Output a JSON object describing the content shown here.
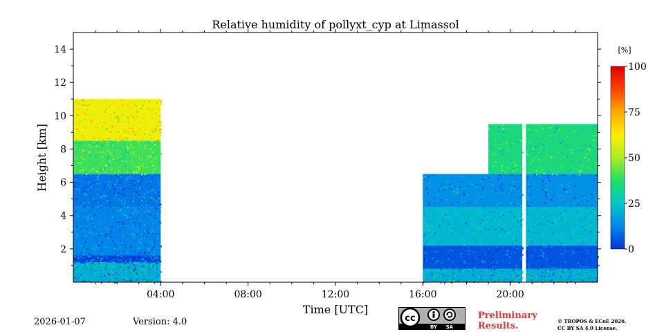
{
  "chart_data": {
    "type": "heatmap",
    "title": "Relative humidity of pollyxt_cyp at Limassol",
    "xlabel": "Time [UTC]",
    "ylabel": "Height [km]",
    "xlim": [
      0,
      24
    ],
    "ylim": [
      0,
      15
    ],
    "x_ticks": [
      {
        "value": 4,
        "label": "04:00"
      },
      {
        "value": 8,
        "label": "08:00"
      },
      {
        "value": 12,
        "label": "12:00"
      },
      {
        "value": 16,
        "label": "16:00"
      },
      {
        "value": 20,
        "label": "20:00"
      }
    ],
    "y_ticks": [
      {
        "value": 2,
        "label": "2"
      },
      {
        "value": 4,
        "label": "4"
      },
      {
        "value": 6,
        "label": "6"
      },
      {
        "value": 8,
        "label": "8"
      },
      {
        "value": 10,
        "label": "10"
      },
      {
        "value": 12,
        "label": "12"
      },
      {
        "value": 14,
        "label": "14"
      }
    ],
    "colorbar": {
      "label": "[%]",
      "range": [
        0,
        100
      ],
      "ticks": [
        {
          "value": 0,
          "label": "0"
        },
        {
          "value": 25,
          "label": "25"
        },
        {
          "value": 50,
          "label": "50"
        },
        {
          "value": 75,
          "label": "75"
        },
        {
          "value": 100,
          "label": "100"
        }
      ],
      "colors": [
        "#0033dd",
        "#0088e8",
        "#00c8c8",
        "#22dd66",
        "#aaee22",
        "#ffee00",
        "#ffaa00",
        "#ff4400",
        "#dd0000"
      ]
    },
    "measurement_periods": [
      {
        "start": 0.0,
        "end": 4.0
      },
      {
        "start": 16.0,
        "end": 20.55
      },
      {
        "start": 20.72,
        "end": 24.0
      }
    ],
    "profile_regions": [
      {
        "period": "night",
        "time_range": [
          0.0,
          4.0
        ],
        "height_range_km": [
          0.0,
          1.2
        ],
        "rh_percent": 20
      },
      {
        "period": "night",
        "time_range": [
          0.0,
          4.0
        ],
        "height_range_km": [
          1.2,
          1.6
        ],
        "rh_percent": 3
      },
      {
        "period": "night",
        "time_range": [
          0.0,
          4.0
        ],
        "height_range_km": [
          1.6,
          4.5
        ],
        "rh_percent": 12
      },
      {
        "period": "night",
        "time_range": [
          0.0,
          4.0
        ],
        "height_range_km": [
          4.5,
          6.5
        ],
        "rh_percent": 10
      },
      {
        "period": "night",
        "time_range": [
          0.0,
          4.0
        ],
        "height_range_km": [
          6.5,
          8.5
        ],
        "rh_percent": 40
      },
      {
        "period": "night",
        "time_range": [
          0.0,
          4.0
        ],
        "height_range_km": [
          8.5,
          11.0
        ],
        "rh_percent": 60
      },
      {
        "period": "evening",
        "time_range": [
          16.0,
          24.0
        ],
        "height_range_km": [
          0.0,
          0.8
        ],
        "rh_percent": 20
      },
      {
        "period": "evening",
        "time_range": [
          16.0,
          24.0
        ],
        "height_range_km": [
          0.8,
          2.2
        ],
        "rh_percent": 5
      },
      {
        "period": "evening",
        "time_range": [
          16.0,
          24.0
        ],
        "height_range_km": [
          2.2,
          4.5
        ],
        "rh_percent": 22
      },
      {
        "period": "evening",
        "time_range": [
          16.0,
          24.0
        ],
        "height_range_km": [
          4.5,
          6.5
        ],
        "rh_percent": 14
      },
      {
        "period": "evening",
        "time_range": [
          19.0,
          24.0
        ],
        "height_range_km": [
          6.5,
          9.5
        ],
        "rh_percent": 35
      }
    ]
  },
  "footer": {
    "date": "2026-01-07",
    "version": "Version: 4.0",
    "preliminary_line1": "Preliminary",
    "preliminary_line2": "Results.",
    "copyright_line1": "© TROPOS & ECoE 2026.",
    "copyright_line2": "CC BY SA 4.0 License.",
    "license_badge": {
      "cc": "cc",
      "by": "BY",
      "sa": "SA"
    }
  }
}
